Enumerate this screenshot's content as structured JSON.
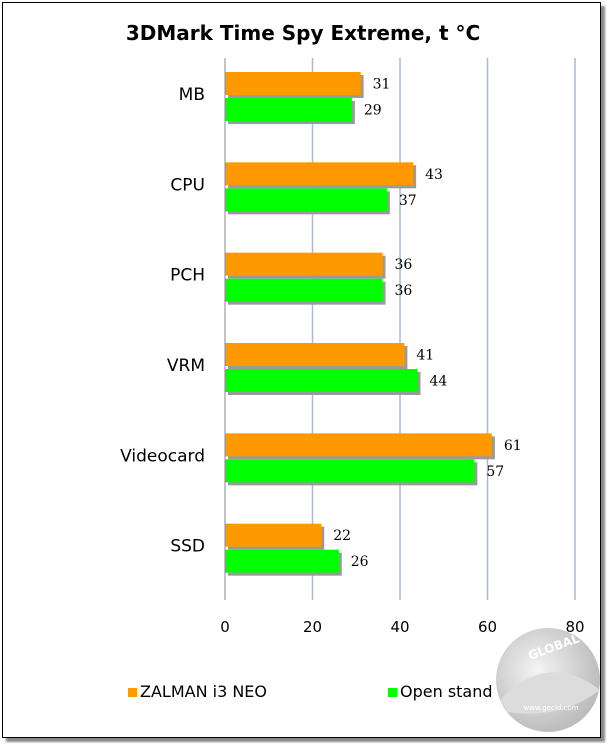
{
  "chart_data": {
    "type": "bar",
    "orientation": "horizontal",
    "title": "3DMark Time Spy Extreme, t °C",
    "categories": [
      "MB",
      "CPU",
      "PCH",
      "VRM",
      "Videocard",
      "SSD"
    ],
    "series": [
      {
        "name": "ZALMAN i3 NEO",
        "color": "#ff9900",
        "values": [
          31,
          43,
          36,
          41,
          61,
          22
        ]
      },
      {
        "name": "Open stand",
        "color": "#00ff00",
        "values": [
          29,
          37,
          36,
          44,
          57,
          26
        ]
      }
    ],
    "xlim": [
      0,
      80
    ],
    "xticks": [
      0,
      20,
      40,
      60,
      80
    ],
    "grid": "vertical",
    "legend_position": "bottom"
  },
  "watermark": {
    "text": "GLOBAL",
    "icon": "globe-logo-icon",
    "url": "www.gecid.com"
  }
}
